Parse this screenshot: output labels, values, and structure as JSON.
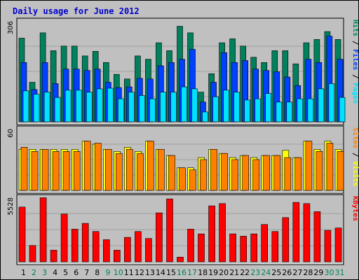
{
  "chart_data": {
    "type": "bar",
    "title": "Daily usage for June 2012",
    "title_color": "#0000cc",
    "categories": [
      "1",
      "2",
      "3",
      "4",
      "5",
      "6",
      "7",
      "8",
      "9",
      "10",
      "11",
      "12",
      "13",
      "14",
      "15",
      "16",
      "17",
      "18",
      "19",
      "20",
      "21",
      "22",
      "23",
      "24",
      "25",
      "26",
      "27",
      "28",
      "29",
      "30",
      "31"
    ],
    "weekend_days": [
      "2",
      "3",
      "9",
      "10",
      "16",
      "17",
      "23",
      "24",
      "30",
      "31"
    ],
    "weekend_color": "#00805c",
    "weekday_color": "#000000",
    "grid": true,
    "panels": [
      {
        "id": "hits",
        "axis_max": 306,
        "axis_max_label": "306",
        "series": [
          {
            "name": "Hits",
            "color": "#00805c",
            "values": [
              254,
              120,
              270,
              216,
              230,
              230,
              200,
              214,
              180,
              144,
              130,
              200,
              190,
              240,
              216,
              290,
              270,
              90,
              146,
              240,
              252,
              230,
              196,
              180,
              216,
              216,
              176,
              240,
              250,
              274,
              250
            ]
          },
          {
            "name": "Files",
            "color": "#0040ff",
            "values": [
              180,
              98,
              180,
              116,
              160,
              160,
              156,
              160,
              120,
              104,
              106,
              132,
              130,
              170,
              180,
              190,
              220,
              60,
              120,
              210,
              180,
              186,
              160,
              156,
              152,
              136,
              110,
              190,
              180,
              260,
              190
            ]
          },
          {
            "name": "Pages",
            "color": "#00e0ff",
            "values": [
              94,
              84,
              90,
              74,
              96,
              96,
              90,
              100,
              102,
              70,
              90,
              80,
              70,
              90,
              90,
              106,
              100,
              30,
              76,
              96,
              90,
              66,
              70,
              86,
              60,
              60,
              70,
              70,
              100,
              116,
              74
            ]
          }
        ],
        "legend": [
          {
            "text": "Hits",
            "color": "#00805c"
          },
          {
            "text": " / ",
            "color": "#000000"
          },
          {
            "text": "Files",
            "color": "#0040ff"
          },
          {
            "text": " / ",
            "color": "#000000"
          },
          {
            "text": "Pages",
            "color": "#00e0ff"
          }
        ]
      },
      {
        "id": "visits",
        "axis_max": 60,
        "axis_max_label": "60",
        "series": [
          {
            "name": "Visits",
            "color": "#ffff00",
            "values": [
              40,
              40,
              40,
              40,
              40,
              40,
              48,
              45,
              40,
              38,
              42,
              38,
              48,
              40,
              34,
              22,
              22,
              32,
              40,
              36,
              32,
              34,
              32,
              34,
              34,
              39,
              32,
              48,
              40,
              48,
              40
            ]
          },
          {
            "name": "Sites",
            "color": "#ff8000",
            "values": [
              42,
              38,
              40,
              38,
              38,
              38,
              48,
              46,
              40,
              36,
              40,
              36,
              48,
              40,
              34,
              22,
              20,
              30,
              40,
              36,
              30,
              34,
              30,
              34,
              34,
              32,
              32,
              48,
              38,
              46,
              38
            ]
          }
        ],
        "legend": [
          {
            "text": "Sites",
            "color": "#ff8000"
          },
          {
            "text": " / ",
            "color": "#000000"
          },
          {
            "text": "Visits",
            "color": "#ffff00"
          }
        ]
      },
      {
        "id": "kbytes",
        "axis_max": 5528,
        "axis_max_label": "5528",
        "series": [
          {
            "name": "KBytes",
            "color": "#ff0000",
            "values": [
              4700,
              1400,
              5500,
              1000,
              4100,
              2800,
              3300,
              2600,
              1900,
              1000,
              2100,
              2600,
              2000,
              4200,
              5400,
              400,
              2800,
              2400,
              4800,
              5000,
              2400,
              2200,
              2400,
              3200,
              2600,
              3800,
              5100,
              5000,
              4300,
              2700,
              2900
            ]
          }
        ],
        "legend": [
          {
            "text": "KBytes",
            "color": "#ff0000"
          }
        ]
      }
    ]
  }
}
